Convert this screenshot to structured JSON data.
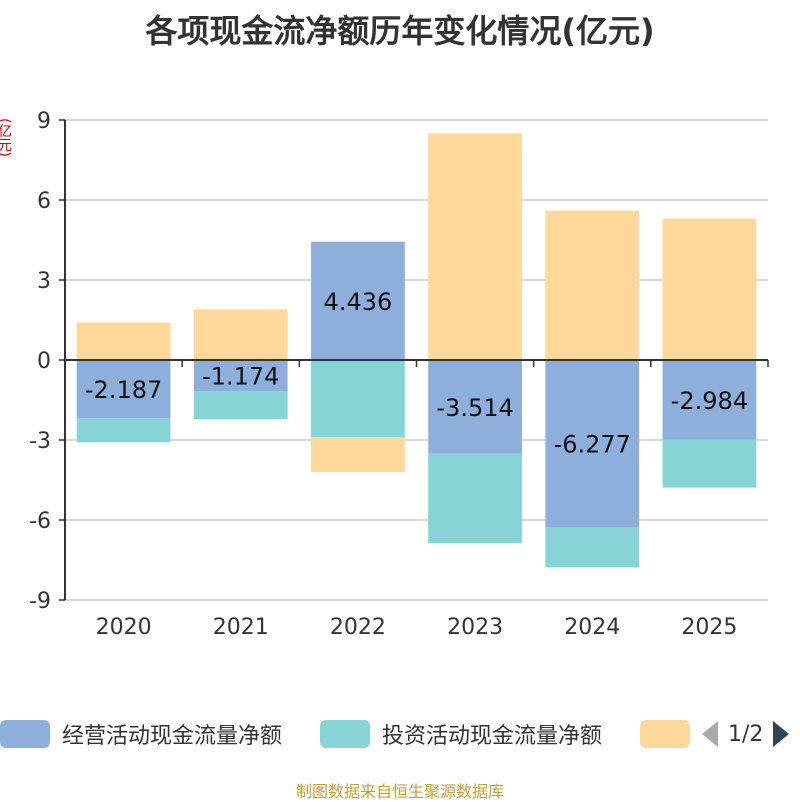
{
  "title": "各项现金流净额历年变化情况(亿元)",
  "y_unit_label": "(亿元)",
  "legend": [
    {
      "label": "经营活动现金流量净额",
      "color": "#8eaedb"
    },
    {
      "label": "投资活动现金流量净额",
      "color": "#87d4d7"
    },
    {
      "label": "",
      "color": "#ffd89a"
    }
  ],
  "pager": {
    "text": "1/2"
  },
  "source": "制图数据来自恒生聚源数据库",
  "chart_data": {
    "type": "bar",
    "stacked": true,
    "title": "各项现金流净额历年变化情况(亿元)",
    "ylabel": "(亿元)",
    "categories": [
      "2020",
      "2021",
      "2022",
      "2023",
      "2024",
      "2025"
    ],
    "ylim": [
      -9,
      9
    ],
    "yticks": [
      -9,
      -6,
      -3,
      0,
      3,
      6,
      9
    ],
    "series": [
      {
        "name": "经营活动现金流量净额",
        "color": "#8eaedb",
        "values": [
          -2.187,
          -1.174,
          4.436,
          -3.514,
          -6.277,
          -2.984
        ],
        "labels": [
          "-2.187",
          "-1.174",
          "4.436",
          "-3.514",
          "-6.277",
          "-2.984"
        ]
      },
      {
        "name": "投资活动现金流量净额",
        "color": "#87d4d7",
        "values": [
          -0.9,
          -1.05,
          -2.9,
          -3.35,
          -1.5,
          -1.8
        ]
      },
      {
        "name": "",
        "color": "#ffd89a",
        "values": [
          1.4,
          1.9,
          -1.3,
          8.5,
          5.6,
          5.3
        ]
      }
    ]
  }
}
